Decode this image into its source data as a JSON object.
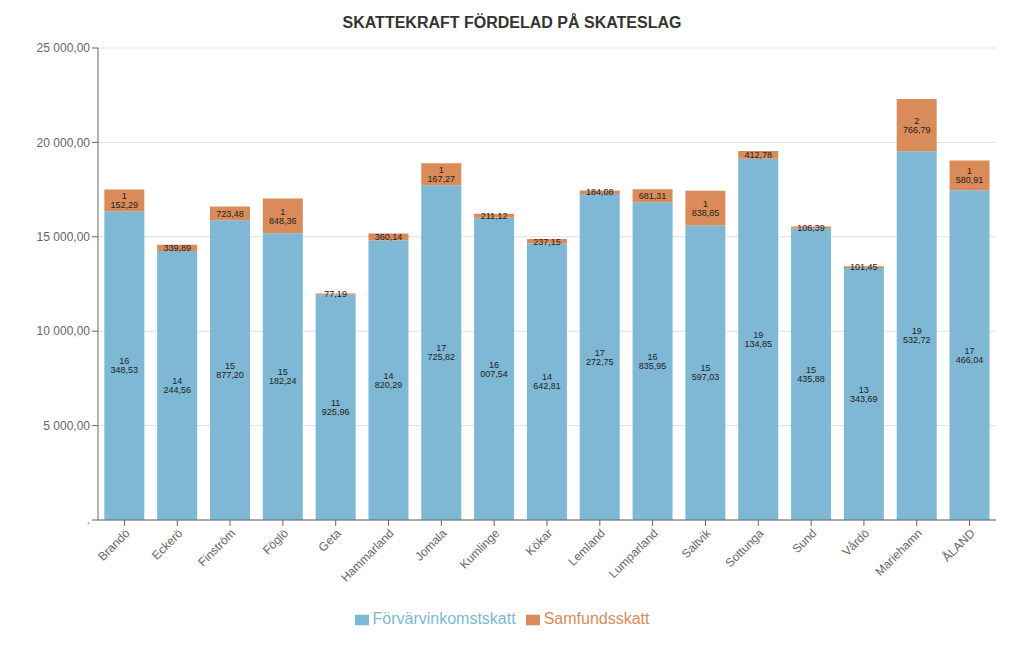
{
  "chart_data": {
    "type": "bar",
    "title": "SKATTEKRAFT FÖRDELAD PÅ SKATESLAG",
    "categories": [
      "Brandö",
      "Eckerö",
      "Finström",
      "Föglö",
      "Geta",
      "Hammarland",
      "Jomala",
      "Kumlinge",
      "Kökar",
      "Lemland",
      "Lumparland",
      "Saltvik",
      "Sottunga",
      "Sund",
      "Vårdö",
      "Mariehamn",
      "ÅLAND"
    ],
    "series": [
      {
        "name": "Förvärvinkomstskatt",
        "color": "#7EB8D4",
        "values": [
          16348.53,
          14244.56,
          15877.2,
          15182.24,
          11925.96,
          14820.29,
          17725.82,
          16007.54,
          14642.81,
          17272.75,
          16835.95,
          15597.03,
          19134.85,
          15435.88,
          13343.69,
          19532.72,
          17466.04
        ],
        "value_labels": [
          "16 348,53",
          "14 244,56",
          "15 877,20",
          "15 182,24",
          "11 925,96",
          "14 820,29",
          "17 725,82",
          "16 007,54",
          "14 642,81",
          "17 272,75",
          "16 835,95",
          "15 597,03",
          "19 134,85",
          "15 435,88",
          "13 343,69",
          "19 532,72",
          "17 466,04"
        ]
      },
      {
        "name": "Samfundsskatt",
        "color": "#D98B5A",
        "values": [
          1152.29,
          339.89,
          723.48,
          1848.36,
          77.19,
          360.14,
          1167.27,
          211.12,
          237.15,
          184.08,
          681.31,
          1838.85,
          412.78,
          106.39,
          101.45,
          2766.79,
          1580.91
        ],
        "value_labels": [
          "1 152,29",
          "339,89",
          "723,48",
          "1 848,36",
          "77,19",
          "360,14",
          "1 167,27",
          "211,12",
          "237,15",
          "184,08",
          "681,31",
          "1 838,85",
          "412,78",
          "106,39",
          "101,45",
          "2 766,79",
          "1 580,91"
        ]
      }
    ],
    "stacked": true,
    "data_labels": true,
    "ylim": [
      0,
      25000
    ],
    "yticks": [
      {
        "value": 0,
        "label": "."
      },
      {
        "value": 5000,
        "label": "5 000,00"
      },
      {
        "value": 10000,
        "label": "10 000,00"
      },
      {
        "value": 15000,
        "label": "15 000,00"
      },
      {
        "value": 20000,
        "label": "20 000,00"
      },
      {
        "value": 25000,
        "label": "25 000,00"
      }
    ],
    "grid": true,
    "legend": "bottom"
  }
}
